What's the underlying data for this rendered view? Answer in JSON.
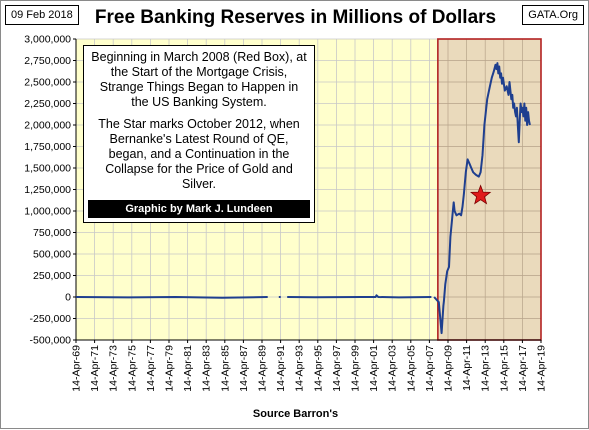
{
  "header": {
    "date": "09 Feb 2018",
    "title": "Free Banking Reserves in Millions of Dollars",
    "site": "GATA.Org"
  },
  "annotation": {
    "paragraph1": "Beginning in March 2008 (Red Box), at the Start of the Mortgage Crisis, Strange Things Began to Happen in the US Banking System.",
    "paragraph2": "The Star marks October 2012, when Bernanke's Latest Round of QE, began, and a Continuation in the Collapse for the Price of Gold and Silver.",
    "credit": "Graphic by Mark J. Lundeen"
  },
  "footer": {
    "source": "Source Barron's"
  },
  "colors": {
    "plot_background": "#ffffcc",
    "highlight_box_fill": "#e6d3b8",
    "highlight_box_border": "#b22222",
    "series_line": "#1f3f8f",
    "star": "#e01b1b",
    "grid": "#c8c8c8"
  },
  "chart_data": {
    "type": "line",
    "title": "Free Banking Reserves in Millions of Dollars",
    "xlabel": "Source Barron's",
    "ylabel": "",
    "xlim": [
      1969.29,
      2019.29
    ],
    "ylim": [
      -500000,
      3000000
    ],
    "yticks": [
      3000000,
      2750000,
      2500000,
      2250000,
      2000000,
      1750000,
      1500000,
      1250000,
      1000000,
      750000,
      500000,
      250000,
      0,
      -250000,
      -500000
    ],
    "ytick_labels": [
      "3,000,000",
      "2,750,000",
      "2,500,000",
      "2,250,000",
      "2,000,000",
      "1,750,000",
      "1,500,000",
      "1,250,000",
      "1,000,000",
      "750,000",
      "500,000",
      "250,000",
      "0",
      "-250,000",
      "-500,000"
    ],
    "xtick_labels": [
      "14-Apr-69",
      "14-Apr-71",
      "14-Apr-73",
      "14-Apr-75",
      "14-Apr-77",
      "14-Apr-79",
      "14-Apr-81",
      "14-Apr-83",
      "14-Apr-85",
      "14-Apr-87",
      "14-Apr-89",
      "14-Apr-91",
      "14-Apr-93",
      "14-Apr-95",
      "14-Apr-97",
      "14-Apr-99",
      "14-Apr-01",
      "14-Apr-03",
      "14-Apr-05",
      "14-Apr-07",
      "14-Apr-09",
      "14-Apr-11",
      "14-Apr-13",
      "14-Apr-15",
      "14-Apr-17",
      "14-Apr-19"
    ],
    "grid": true,
    "highlight_region": {
      "x_start": 2008.2,
      "x_end": 2019.29,
      "label": "Red Box"
    },
    "star_marker": {
      "x": 2012.8,
      "y": 1180000
    },
    "series": [
      {
        "segments": [
          {
            "x": [
              1969.3,
              1975,
              1980,
              1985,
              1989.9
            ],
            "y": [
              0,
              -5000,
              0,
              -8000,
              0
            ]
          },
          {
            "x": [
              1991.1,
              1991.3
            ],
            "y": [
              0,
              0
            ]
          },
          {
            "x": [
              1992.0,
              1995,
              2000,
              2001.5,
              2001.6,
              2001.8,
              2004,
              2007.5
            ],
            "y": [
              0,
              -3000,
              0,
              0,
              20000,
              0,
              -5000,
              0
            ]
          },
          {
            "x": [
              2007.8,
              2008.3,
              2008.6,
              2008.8,
              2008.85,
              2009.0,
              2009.2,
              2009.4,
              2009.55,
              2009.7,
              2009.8,
              2009.9,
              2010.0,
              2010.2,
              2010.5,
              2010.7,
              2010.85,
              2011.0,
              2011.2,
              2011.4,
              2011.6,
              2011.8,
              2012.0,
              2012.3,
              2012.6,
              2012.8,
              2013.0,
              2013.2,
              2013.5,
              2013.8,
              2014.0,
              2014.2,
              2014.4,
              2014.5,
              2014.6,
              2014.7,
              2014.8,
              2014.9,
              2015.0,
              2015.1,
              2015.2,
              2015.4,
              2015.6,
              2015.8,
              2015.9,
              2016.0,
              2016.1,
              2016.2,
              2016.3,
              2016.4,
              2016.5,
              2016.6,
              2016.7,
              2016.8,
              2016.9,
              2017.0,
              2017.1,
              2017.2,
              2017.3,
              2017.4,
              2017.5,
              2017.6,
              2017.7,
              2017.8,
              2017.9,
              2018.0,
              2018.1
            ],
            "y": [
              0,
              -60000,
              -420000,
              -100000,
              -50000,
              150000,
              300000,
              350000,
              700000,
              870000,
              980000,
              1100000,
              1000000,
              950000,
              970000,
              950000,
              1050000,
              1200000,
              1450000,
              1600000,
              1550000,
              1500000,
              1450000,
              1420000,
              1400000,
              1450000,
              1650000,
              2000000,
              2300000,
              2450000,
              2550000,
              2620000,
              2700000,
              2650000,
              2720000,
              2600000,
              2680000,
              2550000,
              2600000,
              2480000,
              2550000,
              2400000,
              2450000,
              2350000,
              2500000,
              2400000,
              2300000,
              2350000,
              2200000,
              2250000,
              2150000,
              2100000,
              2200000,
              2000000,
              1800000,
              2050000,
              2250000,
              2150000,
              2200000,
              2100000,
              2250000,
              2050000,
              2200000,
              2000000,
              2150000,
              2050000,
              2000000
            ]
          }
        ]
      }
    ]
  }
}
